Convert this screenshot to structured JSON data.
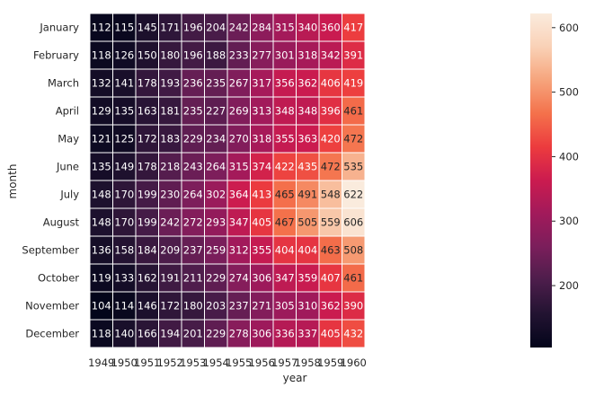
{
  "chart_data": {
    "type": "heatmap",
    "xlabel": "year",
    "ylabel": "month",
    "x": [
      "1949",
      "1950",
      "1951",
      "1952",
      "1953",
      "1954",
      "1955",
      "1956",
      "1957",
      "1958",
      "1959",
      "1960"
    ],
    "y": [
      "January",
      "February",
      "March",
      "April",
      "May",
      "June",
      "July",
      "August",
      "September",
      "October",
      "November",
      "December"
    ],
    "values": [
      [
        112,
        115,
        145,
        171,
        196,
        204,
        242,
        284,
        315,
        340,
        360,
        417
      ],
      [
        118,
        126,
        150,
        180,
        196,
        188,
        233,
        277,
        301,
        318,
        342,
        391
      ],
      [
        132,
        141,
        178,
        193,
        236,
        235,
        267,
        317,
        356,
        362,
        406,
        419
      ],
      [
        129,
        135,
        163,
        181,
        235,
        227,
        269,
        313,
        348,
        348,
        396,
        461
      ],
      [
        121,
        125,
        172,
        183,
        229,
        234,
        270,
        318,
        355,
        363,
        420,
        472
      ],
      [
        135,
        149,
        178,
        218,
        243,
        264,
        315,
        374,
        422,
        435,
        472,
        535
      ],
      [
        148,
        170,
        199,
        230,
        264,
        302,
        364,
        413,
        465,
        491,
        548,
        622
      ],
      [
        148,
        170,
        199,
        242,
        272,
        293,
        347,
        405,
        467,
        505,
        559,
        606
      ],
      [
        136,
        158,
        184,
        209,
        237,
        259,
        312,
        355,
        404,
        404,
        463,
        508
      ],
      [
        119,
        133,
        162,
        191,
        211,
        229,
        274,
        306,
        347,
        359,
        407,
        461
      ],
      [
        104,
        114,
        146,
        172,
        180,
        203,
        237,
        271,
        305,
        310,
        362,
        390
      ],
      [
        118,
        140,
        166,
        194,
        201,
        229,
        278,
        306,
        336,
        337,
        405,
        432
      ]
    ],
    "vmin": 104,
    "vmax": 622,
    "colormap": "rocket",
    "colormap_stops": [
      "#03051a",
      "#221331",
      "#4c1d4b",
      "#7a1e5b",
      "#a11a5b",
      "#cb1b4f",
      "#ec3b3e",
      "#f4714b",
      "#f6a47c",
      "#f9d1b6",
      "#faebdd"
    ],
    "colorbar_ticks": [
      200,
      300,
      400,
      500,
      600
    ],
    "annotated": true,
    "grid": false,
    "cell_border_color": "#ffffff"
  }
}
